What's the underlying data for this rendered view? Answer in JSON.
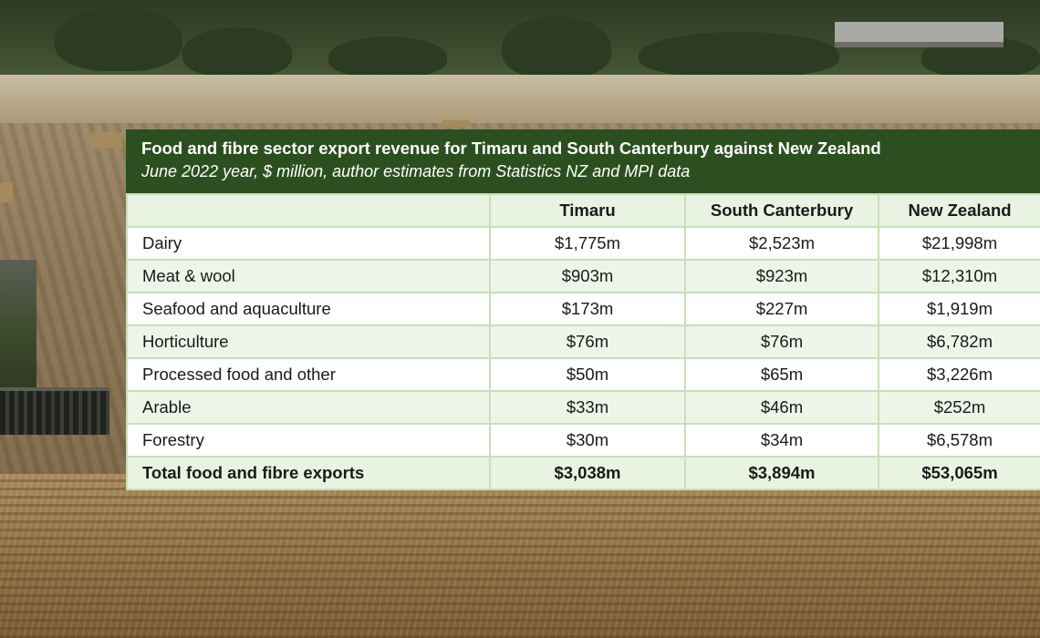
{
  "table": {
    "title": "Food and fibre sector export revenue for Timaru and South Canterbury against New Zealand",
    "subtitle": "June 2022 year, $ million, author estimates from Statistics NZ and MPI data",
    "columns": [
      "",
      "Timaru",
      "South Canterbury",
      "New Zealand"
    ],
    "rows": [
      [
        "Dairy",
        "$1,775m",
        "$2,523m",
        "$21,998m"
      ],
      [
        "Meat & wool",
        "$903m",
        "$923m",
        "$12,310m"
      ],
      [
        "Seafood and aquaculture",
        "$173m",
        "$227m",
        "$1,919m"
      ],
      [
        "Horticulture",
        "$76m",
        "$76m",
        "$6,782m"
      ],
      [
        "Processed food and other",
        "$50m",
        "$65m",
        "$3,226m"
      ],
      [
        "Arable",
        "$33m",
        "$46m",
        "$252m"
      ],
      [
        "Forestry",
        "$30m",
        "$34m",
        "$6,578m"
      ]
    ],
    "total": [
      "Total food and fibre exports",
      "$3,038m",
      "$3,894m",
      "$53,065m"
    ]
  },
  "colors": {
    "header_bg": "#2c4f20",
    "grid_line": "#c7dfba",
    "row_tint": "#eef5e8"
  }
}
